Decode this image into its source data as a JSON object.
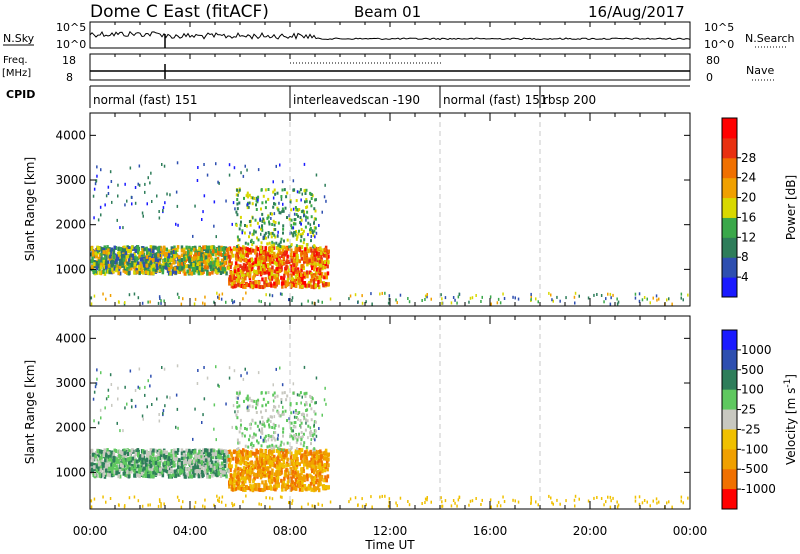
{
  "header": {
    "radar_title": "Dome C East (fitACF)",
    "beam": "Beam 01",
    "date": "16/Aug/2017"
  },
  "top_panels": {
    "nsky_label": "N.Sky",
    "nsky_top_tick": "10^5",
    "nsky_bottom_tick": "10^0",
    "nsearch_label": "N.Search",
    "nsearch_top_tick": "10^5",
    "nsearch_bottom_tick": "10^0",
    "freq_label_line1": "Freq.",
    "freq_label_line2": "[MHz]",
    "freq_top_tick": "18",
    "freq_bottom_tick": "8",
    "nave_label": "Nave",
    "nave_top_tick": "80",
    "nave_bottom_tick": "0",
    "cpid_label": "CPID",
    "cpid_segments": [
      {
        "label": "normal (fast) 151",
        "start_hour": 0
      },
      {
        "label": "interleavedscan -190",
        "start_hour": 8
      },
      {
        "label": "normal (fast) 151",
        "start_hour": 14
      },
      {
        "label": "rbsp 200",
        "start_hour": 18
      }
    ]
  },
  "chart_data": [
    {
      "type": "heatmap",
      "parameter": "Power",
      "ylabel": "Slant Range [km]",
      "colorbar_label": "Power [dB]",
      "colorbar_ticks": [
        "4",
        "8",
        "12",
        "16",
        "20",
        "24",
        "28"
      ],
      "colorbar_colors": [
        "#1a1aff",
        "#2e4fb0",
        "#2e7d5a",
        "#3aa84a",
        "#d8d800",
        "#f0a000",
        "#f07000",
        "#e83010",
        "#ff0000"
      ],
      "xlim_hours": [
        0,
        24
      ],
      "ylim_km": [
        180,
        4500
      ],
      "yticks": [
        "1000",
        "2000",
        "3000",
        "4000"
      ],
      "scatter_regions_description_free": [
        {
          "t": [
            0.0,
            9.5
          ],
          "r": [
            700,
            1500
          ],
          "level": "strong"
        },
        {
          "t": [
            5.5,
            9.5
          ],
          "r": [
            600,
            1300
          ],
          "level": "peak"
        }
      ]
    },
    {
      "type": "heatmap",
      "parameter": "Velocity",
      "ylabel": "Slant Range [km]",
      "colorbar_label": "Velocity [m s^-1]",
      "colorbar_ticks": [
        "1000",
        "500",
        "100",
        "25",
        "-25",
        "-100",
        "-500",
        "-1000"
      ],
      "colorbar_colors": [
        "#1a1aff",
        "#2e4fb0",
        "#2e7d5a",
        "#5fc85f",
        "#c8c8c0",
        "#f0c000",
        "#f0a000",
        "#f07000",
        "#ff0000"
      ],
      "xlim_hours": [
        0,
        24
      ],
      "ylim_km": [
        180,
        4500
      ],
      "yticks": [
        "1000",
        "2000",
        "3000",
        "4000"
      ]
    }
  ],
  "x_axis": {
    "xlabel": "Time UT",
    "xticks": [
      "00:00",
      "04:00",
      "08:00",
      "12:00",
      "16:00",
      "20:00",
      "00:00"
    ]
  }
}
